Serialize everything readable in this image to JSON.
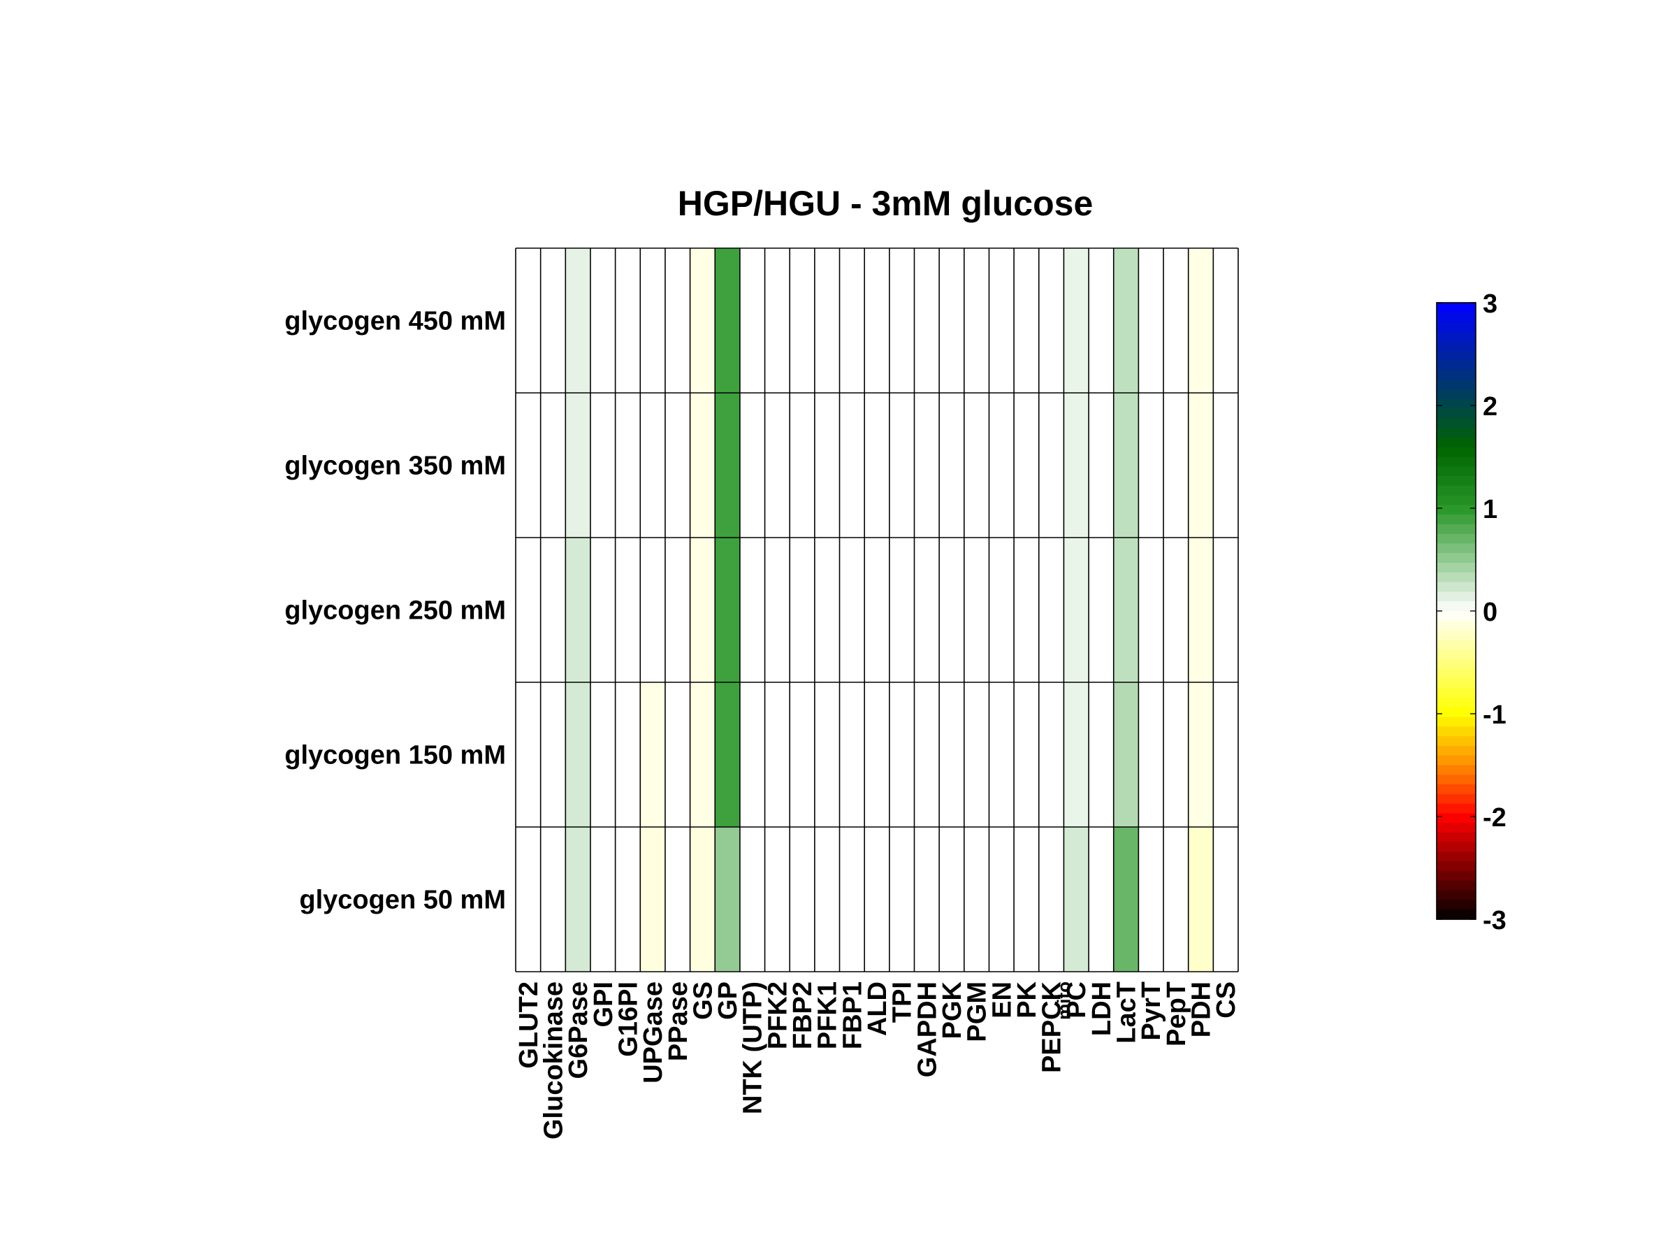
{
  "chart_data": {
    "type": "heatmap",
    "title": "HGP/HGU - 3mM glucose",
    "rows": [
      "glycogen 450 mM",
      "glycogen 350 mM",
      "glycogen 250 mM",
      "glycogen 150 mM",
      "glycogen 50 mM"
    ],
    "columns": [
      "GLUT2",
      "Glucokinase",
      "G6Pase",
      "GPI",
      "G16PI",
      "UPGase",
      "PPase",
      "GS",
      "GP",
      "NTK (UTP)",
      "PFK2",
      "FBP2",
      "PFK1",
      "FBP1",
      "ALD",
      "TPI",
      "GAPDH",
      "PGK",
      "PGM",
      "EN",
      "PK",
      "PEPCK",
      "PC",
      "LDH",
      "LacT",
      "PyrT",
      "PepT",
      "PDH",
      "CS"
    ],
    "column_subscripts": {
      "PEPCK": "mito"
    },
    "values": [
      [
        0,
        0,
        0.12,
        0,
        0,
        0,
        0,
        -0.1,
        0.9,
        0,
        0,
        0,
        0,
        0,
        0,
        0,
        0,
        0,
        0,
        0,
        0,
        0,
        0.1,
        0,
        0.3,
        0,
        0,
        -0.1,
        0
      ],
      [
        0,
        0,
        0.12,
        0,
        0,
        0,
        0,
        -0.1,
        0.9,
        0,
        0,
        0,
        0,
        0,
        0,
        0,
        0,
        0,
        0,
        0,
        0,
        0,
        0.1,
        0,
        0.3,
        0,
        0,
        -0.1,
        0
      ],
      [
        0,
        0,
        0.2,
        0,
        0,
        0,
        0,
        -0.1,
        0.9,
        0,
        0,
        0,
        0,
        0,
        0,
        0,
        0,
        0,
        0,
        0,
        0,
        0,
        0.1,
        0,
        0.3,
        0,
        0,
        -0.1,
        0
      ],
      [
        0,
        0,
        0.2,
        0,
        0,
        -0.1,
        0,
        -0.1,
        0.9,
        0,
        0,
        0,
        0,
        0,
        0,
        0,
        0,
        0,
        0,
        0,
        0,
        0,
        0.1,
        0,
        0.35,
        0,
        0,
        -0.1,
        0
      ],
      [
        0,
        0,
        0.2,
        0,
        0,
        -0.12,
        0,
        -0.12,
        0.5,
        0,
        0,
        0,
        0,
        0,
        0,
        0,
        0,
        0,
        0,
        0,
        0,
        0,
        0.2,
        0,
        0.7,
        0,
        0,
        -0.2,
        0
      ]
    ],
    "colorbar": {
      "min": -3,
      "max": 3,
      "ticks": [
        3,
        2,
        1,
        0,
        -1,
        -2,
        -3
      ]
    },
    "grid": true
  }
}
